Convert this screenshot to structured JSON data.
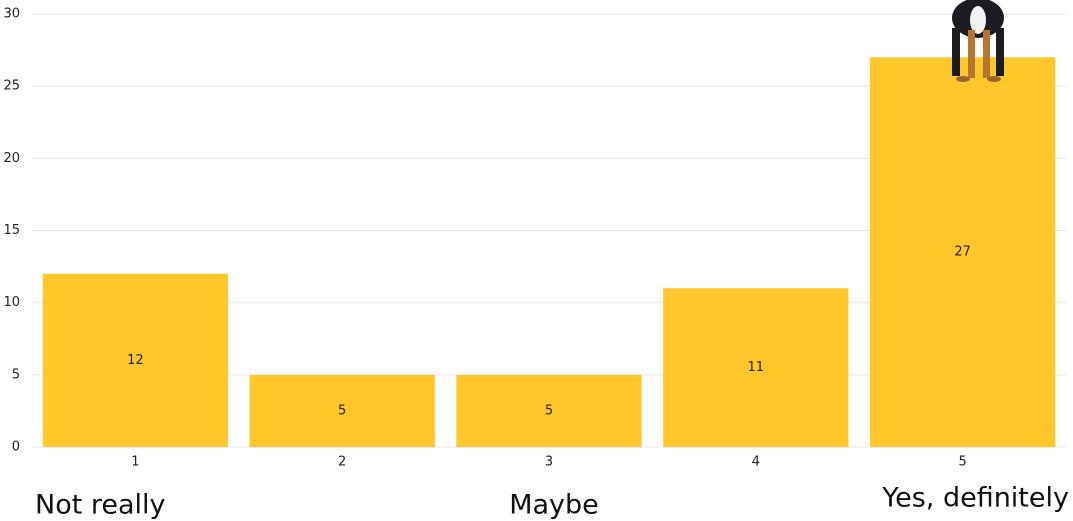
{
  "chart_data": {
    "type": "bar",
    "categories": [
      "1",
      "2",
      "3",
      "4",
      "5"
    ],
    "values": [
      12,
      5,
      5,
      11,
      27
    ],
    "color": "#ffc72c",
    "ylim": [
      0,
      30
    ],
    "yticks": [
      0,
      5,
      10,
      15,
      20,
      25,
      30
    ],
    "grid": true,
    "annotations": [
      "Not really",
      "Maybe",
      "Yes, definitely"
    ]
  }
}
